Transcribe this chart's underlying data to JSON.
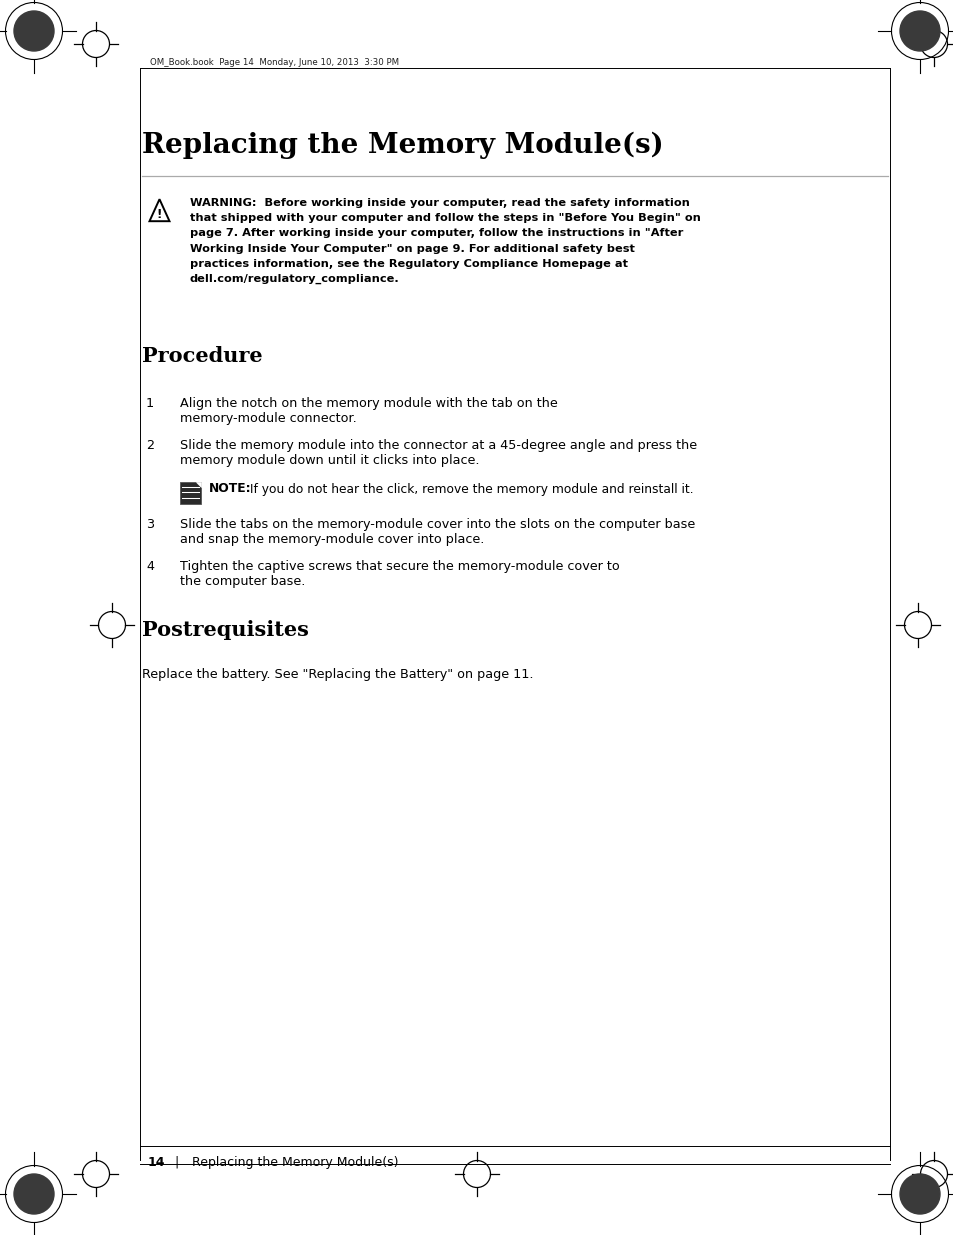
{
  "bg_color": "#ffffff",
  "page_width": 9.54,
  "page_height": 12.35,
  "header_text": "OM_Book.book  Page 14  Monday, June 10, 2013  3:30 PM",
  "title": "Replacing the Memory Module(s)",
  "warning_text_bold": "WARNING:  Before working inside your computer, read the safety information\nthat shipped with your computer and follow the steps in \"Before You Begin\" on\npage 7. After working inside your computer, follow the instructions in \"After\nWorking Inside Your Computer\" on page 9. For additional safety best\npractices information, see the Regulatory Compliance Homepage at\ndell.com/regulatory_compliance.",
  "section1_title": "Procedure",
  "step1_num": "1",
  "step1_text": "Align the notch on the memory module with the tab on the\nmemory-module connector.",
  "step2_num": "2",
  "step2_text": "Slide the memory module into the connector at a 45-degree angle and press the\nmemory module down until it clicks into place.",
  "note_label": "NOTE:",
  "note_text": " If you do not hear the click, remove the memory module and reinstall it.",
  "step3_num": "3",
  "step3_text": "Slide the tabs on the memory-module cover into the slots on the computer base\nand snap the memory-module cover into place.",
  "step4_num": "4",
  "step4_text": "Tighten the captive screws that secure the memory-module cover to\nthe computer base.",
  "section2_title": "Postrequisites",
  "postreq_text": "Replace the battery. See \"Replacing the Battery\" on page 11.",
  "footer_page": "14",
  "footer_sep": "|",
  "footer_text": "Replacing the Memory Module(s)",
  "text_color": "#000000"
}
